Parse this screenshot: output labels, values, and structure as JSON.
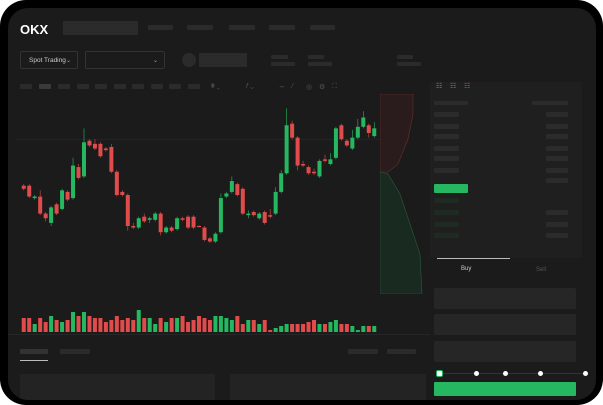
{
  "header": {
    "logo": "OKX"
  },
  "toolbar": {
    "market_selector": "Spot Trading",
    "pair_selector": "",
    "dropdown_icon": "chevron-down-icon"
  },
  "chart_tools": [
    "indicator-icon",
    "draw-line-icon",
    "ruler-icon",
    "camera-icon",
    "settings-icon",
    "fullscreen-icon"
  ],
  "orderbook": {
    "view_icons": [
      "orderbook-both-icon",
      "orderbook-buy-icon",
      "orderbook-sell-icon"
    ]
  },
  "trade": {
    "tabs": [
      {
        "label": "Buy",
        "active": true
      },
      {
        "label": "Sell",
        "active": false
      }
    ],
    "slider_percent": 0,
    "slider_stops": 5
  },
  "colors": {
    "up": "#25b861",
    "down": "#e04b4b",
    "background": "#1b1b1b",
    "accent": "#25b861"
  },
  "chart_data": {
    "type": "candlestick",
    "ylim": [
      0,
      100
    ],
    "candles": [
      [
        46,
        44,
        47,
        43
      ],
      [
        46,
        39,
        47,
        38
      ],
      [
        38,
        39,
        40,
        37
      ],
      [
        39,
        28,
        43,
        27
      ],
      [
        28,
        25,
        29,
        23
      ],
      [
        22,
        32,
        33,
        20
      ],
      [
        34,
        28,
        35,
        27
      ],
      [
        31,
        43,
        44,
        30
      ],
      [
        42,
        37,
        43,
        36
      ],
      [
        38,
        59,
        64,
        37
      ],
      [
        58,
        51,
        60,
        50
      ],
      [
        52,
        74,
        83,
        51
      ],
      [
        75,
        72,
        76,
        71
      ],
      [
        73,
        70,
        76,
        69
      ],
      [
        73,
        65,
        74,
        64
      ],
      [
        70,
        69,
        71,
        68
      ],
      [
        71,
        55,
        73,
        54
      ],
      [
        55,
        40,
        56,
        39
      ],
      [
        42,
        40,
        43,
        39
      ],
      [
        40,
        20,
        41,
        17
      ],
      [
        20,
        19,
        22,
        18
      ],
      [
        19,
        25,
        26,
        18
      ],
      [
        26,
        23,
        28,
        22
      ],
      [
        24,
        25,
        26,
        22
      ],
      [
        24,
        28,
        29,
        23
      ],
      [
        28,
        16,
        29,
        14
      ],
      [
        16,
        19,
        20,
        15
      ],
      [
        19,
        17,
        20,
        16
      ],
      [
        18,
        25,
        26,
        17
      ],
      [
        25,
        24,
        26,
        23
      ],
      [
        26,
        19,
        27,
        18
      ],
      [
        26,
        19,
        27,
        18
      ],
      [
        20,
        19.5,
        20.5,
        19
      ],
      [
        19,
        11,
        20,
        10
      ],
      [
        12,
        10,
        13,
        9
      ],
      [
        10,
        15,
        16,
        9
      ],
      [
        16,
        38,
        41,
        15
      ],
      [
        39,
        41,
        42,
        38
      ],
      [
        42,
        49,
        52,
        41
      ],
      [
        47,
        40,
        48,
        39
      ],
      [
        44,
        28,
        45,
        27
      ],
      [
        27,
        28,
        30,
        25
      ],
      [
        29,
        27,
        30,
        26
      ],
      [
        25,
        28,
        29,
        24
      ],
      [
        29,
        22,
        30,
        21
      ],
      [
        27,
        26,
        31,
        25
      ],
      [
        28,
        42,
        45,
        27
      ],
      [
        42,
        54,
        56,
        41
      ],
      [
        54,
        85,
        96,
        53
      ],
      [
        86,
        77,
        88,
        76
      ],
      [
        77,
        59,
        78,
        56
      ],
      [
        60,
        59,
        62,
        58
      ],
      [
        58,
        54,
        59,
        53
      ],
      [
        55,
        54,
        57,
        53
      ],
      [
        52,
        62,
        63,
        51
      ],
      [
        63,
        62,
        66,
        61
      ],
      [
        60,
        63,
        67,
        59
      ],
      [
        64,
        83,
        84,
        63
      ],
      [
        85,
        76,
        86,
        75
      ],
      [
        75,
        72,
        76,
        71
      ],
      [
        70,
        77,
        82,
        69
      ],
      [
        77,
        84,
        89,
        76
      ],
      [
        84,
        90,
        94,
        83
      ],
      [
        85,
        80,
        86,
        77
      ],
      [
        78,
        83,
        87,
        77
      ]
    ],
    "volume": [
      7,
      7,
      4,
      7,
      5,
      8,
      6,
      5,
      6,
      10,
      8,
      10,
      8,
      7,
      7,
      5,
      6,
      8,
      6,
      7,
      6,
      11,
      7,
      7,
      4,
      7,
      5,
      7,
      7,
      8,
      5,
      6,
      8,
      7,
      6,
      8,
      8,
      7,
      6,
      8,
      4,
      6,
      6,
      4,
      6,
      1,
      2,
      3,
      4,
      4,
      4,
      4,
      5,
      6,
      4,
      4,
      5,
      6,
      4,
      4,
      3,
      1,
      3,
      3,
      3
    ]
  }
}
